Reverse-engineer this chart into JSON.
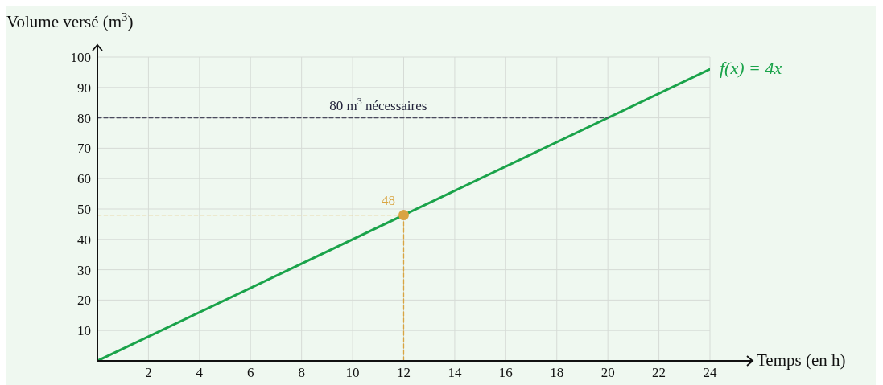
{
  "chart_data": {
    "type": "line",
    "xlabel": "Temps (en h)",
    "ylabel": "Volume versé (m$^{3}$)",
    "xlim": [
      0,
      24
    ],
    "ylim": [
      0,
      100
    ],
    "xticks": [
      2,
      4,
      6,
      8,
      10,
      12,
      14,
      16,
      18,
      20,
      22,
      24
    ],
    "yticks": [
      10,
      20,
      30,
      40,
      50,
      60,
      70,
      80,
      90,
      100
    ],
    "grid": true,
    "series": [
      {
        "name": "f(x) = 4x",
        "x": [
          0,
          24
        ],
        "values": [
          0,
          96
        ],
        "color": "#1aa34a",
        "line_style": "solid",
        "marker": "none"
      },
      {
        "x": [
          0,
          20
        ],
        "values": [
          80,
          80
        ],
        "color": "#4a4a5e",
        "line_style": "dashed",
        "marker": "none"
      },
      {
        "x": [
          0,
          12
        ],
        "values": [
          48,
          48
        ],
        "color": "#e2bc6e",
        "line_style": "dashed",
        "marker": "none"
      },
      {
        "x": [
          12,
          12
        ],
        "values": [
          0,
          48
        ],
        "color": "#d9a441",
        "line_style": "dashed",
        "marker": "none"
      },
      {
        "type": "scatter",
        "x": [
          12
        ],
        "values": [
          48
        ],
        "color": "#d9a441",
        "marker": "circle",
        "value_labels": [
          "48"
        ]
      }
    ],
    "annotations": [
      {
        "text": "80 m$^{3}$ nécessaires",
        "x": 11,
        "y": 80
      }
    ]
  }
}
